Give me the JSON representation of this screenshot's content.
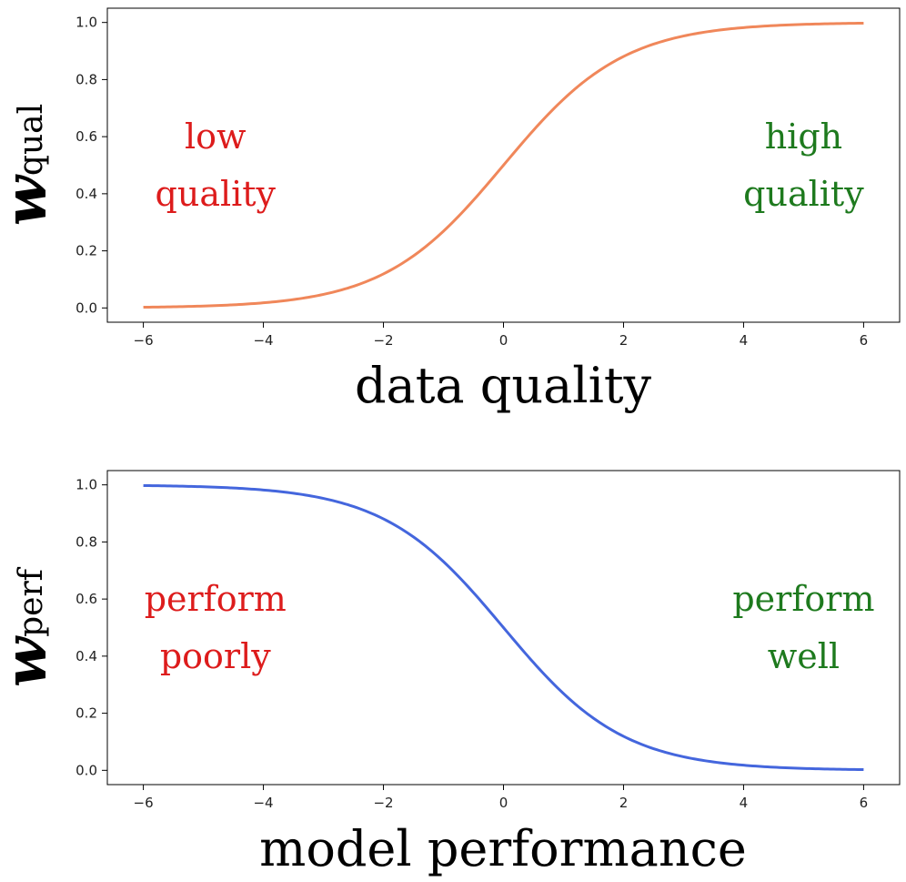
{
  "chart_data": [
    {
      "type": "line",
      "xlabel": "data quality",
      "ylabel": "w",
      "ylabel_sub": "qual",
      "xlim": [
        -6.6,
        6.6
      ],
      "ylim": [
        -0.05,
        1.05
      ],
      "xticks": [
        -6,
        -4,
        -2,
        0,
        2,
        4,
        6
      ],
      "yticks": [
        0.0,
        0.2,
        0.4,
        0.6,
        0.8,
        1.0
      ],
      "xtick_labels": [
        "−6",
        "−4",
        "−2",
        "0",
        "2",
        "4",
        "6"
      ],
      "ytick_labels": [
        "0.0",
        "0.2",
        "0.4",
        "0.6",
        "0.8",
        "1.0"
      ],
      "grid": false,
      "series": [
        {
          "color": "#f0875a",
          "x": [
            -6,
            -5,
            -4,
            -3,
            -2,
            -1,
            0,
            1,
            2,
            3,
            4,
            5,
            6
          ],
          "y": [
            0.0025,
            0.0067,
            0.018,
            0.047,
            0.119,
            0.269,
            0.5,
            0.731,
            0.881,
            0.953,
            0.982,
            0.993,
            0.9975
          ]
        }
      ],
      "annotations": [
        {
          "lines": [
            "low",
            "quality"
          ],
          "color": "#dd1c1c",
          "x": -4.8,
          "y": [
            0.6,
            0.4
          ]
        },
        {
          "lines": [
            "high",
            "quality"
          ],
          "color": "#1e7a1e",
          "x": 5.0,
          "y": [
            0.6,
            0.4
          ]
        }
      ]
    },
    {
      "type": "line",
      "xlabel": "model performance",
      "ylabel": "w",
      "ylabel_sub": "perf",
      "xlim": [
        -6.6,
        6.6
      ],
      "ylim": [
        -0.05,
        1.05
      ],
      "xticks": [
        -6,
        -4,
        -2,
        0,
        2,
        4,
        6
      ],
      "yticks": [
        0.0,
        0.2,
        0.4,
        0.6,
        0.8,
        1.0
      ],
      "xtick_labels": [
        "−6",
        "−4",
        "−2",
        "0",
        "2",
        "4",
        "6"
      ],
      "ytick_labels": [
        "0.0",
        "0.2",
        "0.4",
        "0.6",
        "0.8",
        "1.0"
      ],
      "grid": false,
      "series": [
        {
          "color": "#4466dd",
          "x": [
            -6,
            -5,
            -4,
            -3,
            -2,
            -1,
            0,
            1,
            2,
            3,
            4,
            5,
            6
          ],
          "y": [
            0.9975,
            0.993,
            0.982,
            0.953,
            0.881,
            0.731,
            0.5,
            0.269,
            0.119,
            0.047,
            0.018,
            0.0067,
            0.0025
          ]
        }
      ],
      "annotations": [
        {
          "lines": [
            "perform",
            "poorly"
          ],
          "color": "#dd1c1c",
          "x": -4.8,
          "y": [
            0.6,
            0.4
          ]
        },
        {
          "lines": [
            "perform",
            "well"
          ],
          "color": "#1e7a1e",
          "x": 5.0,
          "y": [
            0.6,
            0.4
          ]
        }
      ]
    }
  ]
}
